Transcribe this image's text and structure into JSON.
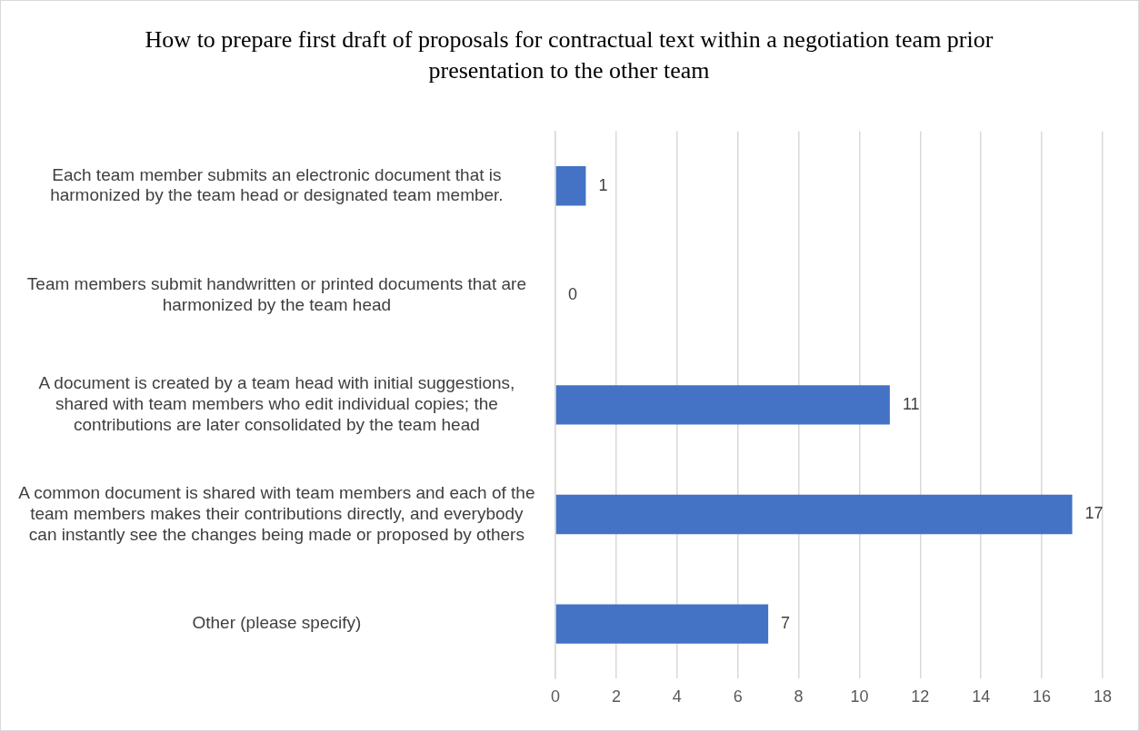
{
  "chart_data": {
    "type": "bar",
    "orientation": "horizontal",
    "title": "How to prepare first draft of proposals for contractual text within a negotiation team prior presentation to the other team",
    "categories": [
      "Each team member submits an electronic document that is harmonized by the team head or designated team member.",
      "Team members submit handwritten or printed documents that are harmonized by the team head",
      "A document is created by a team head with initial suggestions, shared with team members who edit individual copies; the contributions are later consolidated by the team head",
      "A common document is shared with team members and each of the team members makes their contributions directly, and everybody can instantly see the changes being made or proposed by others",
      "Other (please specify)"
    ],
    "values": [
      1,
      0,
      11,
      17,
      7
    ],
    "color": "#4472c4",
    "xlim": [
      0,
      18
    ],
    "xticks": [
      0,
      2,
      4,
      6,
      8,
      10,
      12,
      14,
      16,
      18
    ],
    "grid": "x",
    "data_labels": true,
    "legend": false
  }
}
